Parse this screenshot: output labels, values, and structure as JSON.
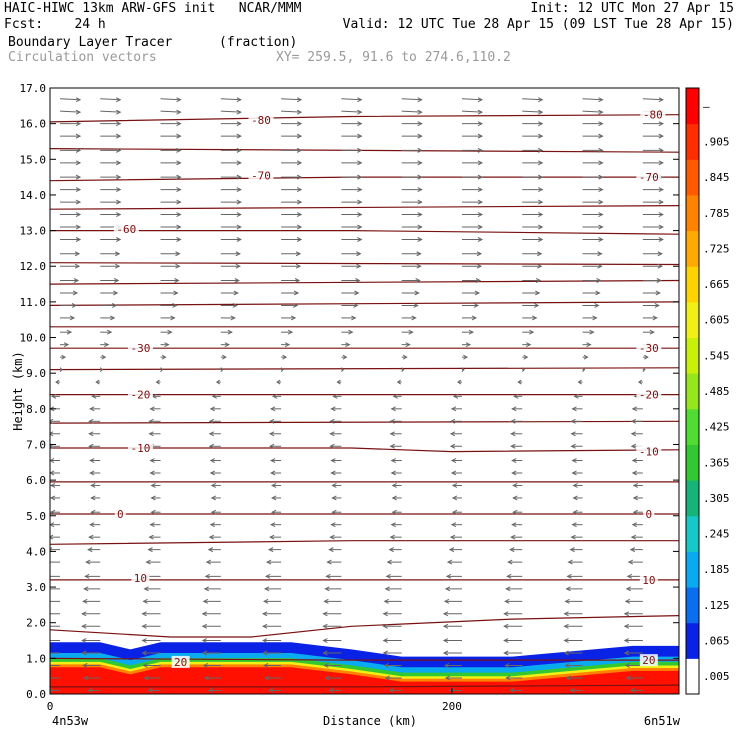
{
  "header": {
    "line1_left": "HAIC-HIWC 13km ARW-GFS init   NCAR/MMM",
    "line1_right": "Init: 12 UTC Mon 27 Apr 15",
    "line2_left": "Fcst:    24 h",
    "line2_right": "Valid: 12 UTC Tue 28 Apr 15 (09 LST Tue 28 Apr 15)",
    "field_name": "Boundary Layer Tracer",
    "field_units": "(fraction)",
    "overlay_name": "Circulation vectors",
    "xy_range": "XY= 259.5, 91.6 to 274.6,110.2"
  },
  "chart_data": {
    "type": "heatmap",
    "xlabel": "Distance (km)",
    "ylabel": "Height (km)",
    "xlim": [
      0,
      313
    ],
    "ylim": [
      0,
      17
    ],
    "x_ticks": [
      {
        "value": 0,
        "label": "0"
      },
      {
        "value": 200,
        "label": "200"
      }
    ],
    "y_ticks": [
      "0.0",
      "1.0",
      "2.0",
      "3.0",
      "4.0",
      "5.0",
      "6.0",
      "7.0",
      "8.0",
      "9.0",
      "10.0",
      "11.0",
      "12.0",
      "13.0",
      "14.0",
      "15.0",
      "16.0",
      "17.0"
    ],
    "left_endpoint_label": "4n53w",
    "right_endpoint_label": "6n51w",
    "colorbar": {
      "labels": [
        ".005",
        ".065",
        ".125",
        ".185",
        ".245",
        ".305",
        ".365",
        ".425",
        ".485",
        ".545",
        ".605",
        ".665",
        ".725",
        ".785",
        ".845",
        ".905",
        "–"
      ],
      "colors": [
        "#ffffff",
        "#0a22e6",
        "#0a6ef0",
        "#0aaaf0",
        "#16c8c8",
        "#16b478",
        "#32c832",
        "#50dc32",
        "#96e61e",
        "#c8f00a",
        "#f0f014",
        "#ffd200",
        "#ffaa00",
        "#ff8200",
        "#ff5a00",
        "#ff2d00",
        "#ff0000"
      ]
    },
    "tracer_layer": {
      "top_height_km": [
        [
          0,
          1.45
        ],
        [
          25,
          1.45
        ],
        [
          40,
          1.25
        ],
        [
          55,
          1.45
        ],
        [
          100,
          1.45
        ],
        [
          120,
          1.45
        ],
        [
          150,
          1.25
        ],
        [
          175,
          1.05
        ],
        [
          230,
          1.05
        ],
        [
          260,
          1.2
        ],
        [
          290,
          1.35
        ],
        [
          313,
          1.35
        ]
      ],
      "bands": [
        {
          "offset_km": 0.3,
          "color": "#0a22e6"
        },
        {
          "offset_km": 0.45,
          "color": "#0aaaf0"
        },
        {
          "offset_km": 0.55,
          "color": "#32c832"
        },
        {
          "offset_km": 0.62,
          "color": "#f0f014"
        },
        {
          "offset_km": 0.7,
          "color": "#ff8200"
        },
        {
          "offset_km": 10,
          "color": "#ff1000"
        }
      ]
    },
    "temperature_contours": [
      {
        "label": "0",
        "points": [
          [
            0,
            5.05
          ],
          [
            150,
            5.05
          ],
          [
            313,
            5.05
          ]
        ],
        "label_at": [
          [
            35,
            5.05
          ],
          [
            298,
            5.05
          ]
        ]
      },
      {
        "label": "-10",
        "points": [
          [
            0,
            6.9
          ],
          [
            150,
            6.9
          ],
          [
            200,
            6.8
          ],
          [
            313,
            6.85
          ]
        ],
        "label_at": [
          [
            45,
            6.9
          ],
          [
            298,
            6.8
          ]
        ]
      },
      {
        "label": "-20",
        "points": [
          [
            0,
            8.4
          ],
          [
            150,
            8.4
          ],
          [
            313,
            8.4
          ]
        ],
        "label_at": [
          [
            45,
            8.4
          ],
          [
            298,
            8.4
          ]
        ]
      },
      {
        "label": "-30",
        "points": [
          [
            0,
            9.7
          ],
          [
            150,
            9.7
          ],
          [
            313,
            9.7
          ]
        ],
        "label_at": [
          [
            45,
            9.7
          ],
          [
            298,
            9.7
          ]
        ]
      },
      {
        "label": "-60",
        "points": [
          [
            0,
            13.0
          ],
          [
            150,
            13.0
          ],
          [
            313,
            12.9
          ]
        ],
        "label_at": [
          [
            38,
            13.05
          ]
        ]
      },
      {
        "label": "-70",
        "points": [
          [
            0,
            14.4
          ],
          [
            150,
            14.5
          ],
          [
            313,
            14.5
          ]
        ],
        "label_at": [
          [
            105,
            14.55
          ],
          [
            298,
            14.5
          ]
        ]
      },
      {
        "label": "-80",
        "points": [
          [
            0,
            16.05
          ],
          [
            150,
            16.2
          ],
          [
            313,
            16.25
          ]
        ],
        "label_at": [
          [
            105,
            16.1
          ],
          [
            300,
            16.25
          ]
        ]
      },
      {
        "label": "10",
        "points": [
          [
            0,
            3.2
          ],
          [
            150,
            3.2
          ],
          [
            313,
            3.2
          ]
        ],
        "label_at": [
          [
            45,
            3.25
          ],
          [
            298,
            3.2
          ]
        ]
      },
      {
        "label": "20",
        "points": [
          [
            0,
            1.0
          ],
          [
            150,
            0.95
          ],
          [
            313,
            0.95
          ]
        ],
        "label_at": [
          [
            65,
            0.9
          ],
          [
            298,
            0.95
          ]
        ]
      }
    ],
    "other_contours": [
      [
        [
          0,
          0.2
        ],
        [
          100,
          0.2
        ],
        [
          150,
          0.2
        ],
        [
          313,
          0.25
        ]
      ],
      [
        [
          0,
          1.8
        ],
        [
          60,
          1.6
        ],
        [
          100,
          1.6
        ],
        [
          150,
          1.9
        ],
        [
          230,
          2.1
        ],
        [
          313,
          2.2
        ]
      ],
      [
        [
          0,
          4.2
        ],
        [
          150,
          4.3
        ],
        [
          313,
          4.3
        ]
      ],
      [
        [
          0,
          5.95
        ],
        [
          313,
          5.95
        ]
      ],
      [
        [
          0,
          7.6
        ],
        [
          313,
          7.65
        ]
      ],
      [
        [
          0,
          9.1
        ],
        [
          313,
          9.15
        ]
      ],
      [
        [
          0,
          10.3
        ],
        [
          313,
          10.3
        ]
      ],
      [
        [
          0,
          10.9
        ],
        [
          313,
          11.0
        ]
      ],
      [
        [
          0,
          11.5
        ],
        [
          313,
          11.6
        ]
      ],
      [
        [
          0,
          12.1
        ],
        [
          313,
          12.05
        ]
      ],
      [
        [
          0,
          13.6
        ],
        [
          313,
          13.7
        ]
      ],
      [
        [
          0,
          15.3
        ],
        [
          313,
          15.2
        ]
      ]
    ],
    "circulation_vectors": {
      "x_columns_km": [
        5,
        25,
        55,
        85,
        115,
        145,
        175,
        205,
        235,
        265,
        295
      ],
      "levels": [
        {
          "z": 16.7,
          "u": 1.0,
          "w": -0.05
        },
        {
          "z": 16.35,
          "u": 1.0,
          "w": -0.05
        },
        {
          "z": 16.0,
          "u": 1.0,
          "w": 0.0
        },
        {
          "z": 15.65,
          "u": 1.0,
          "w": 0.0
        },
        {
          "z": 15.25,
          "u": 1.0,
          "w": 0.0
        },
        {
          "z": 14.9,
          "u": 1.0,
          "w": 0.0
        },
        {
          "z": 14.5,
          "u": 1.0,
          "w": 0.0
        },
        {
          "z": 14.15,
          "u": 1.0,
          "w": 0.0
        },
        {
          "z": 13.8,
          "u": 1.0,
          "w": 0.0
        },
        {
          "z": 13.45,
          "u": 1.0,
          "w": 0.0
        },
        {
          "z": 13.1,
          "u": 1.0,
          "w": 0.0
        },
        {
          "z": 12.75,
          "u": 1.0,
          "w": 0.0
        },
        {
          "z": 12.35,
          "u": 0.95,
          "w": 0.0
        },
        {
          "z": 12.0,
          "u": 0.95,
          "w": 0.0
        },
        {
          "z": 11.6,
          "u": 0.9,
          "w": 0.0
        },
        {
          "z": 11.25,
          "u": 0.85,
          "w": 0.0
        },
        {
          "z": 10.9,
          "u": 0.8,
          "w": 0.0
        },
        {
          "z": 10.55,
          "u": 0.7,
          "w": 0.0
        },
        {
          "z": 10.15,
          "u": 0.55,
          "w": 0.0
        },
        {
          "z": 9.8,
          "u": 0.4,
          "w": 0.0
        },
        {
          "z": 9.45,
          "u": 0.25,
          "w": 0.0
        },
        {
          "z": 9.1,
          "u": 0.1,
          "w": 0.0
        },
        {
          "z": 8.75,
          "u": -0.2,
          "w": 0.0
        },
        {
          "z": 8.35,
          "u": -0.4,
          "w": 0.0
        },
        {
          "z": 8.0,
          "u": -0.5,
          "w": 0.0
        },
        {
          "z": 7.65,
          "u": -0.55,
          "w": 0.0
        },
        {
          "z": 7.3,
          "u": -0.55,
          "w": 0.0
        },
        {
          "z": 6.95,
          "u": -0.55,
          "w": 0.0
        },
        {
          "z": 6.55,
          "u": -0.5,
          "w": 0.0
        },
        {
          "z": 6.2,
          "u": -0.5,
          "w": 0.0
        },
        {
          "z": 5.85,
          "u": -0.45,
          "w": 0.0
        },
        {
          "z": 5.5,
          "u": -0.45,
          "w": 0.0
        },
        {
          "z": 5.1,
          "u": -0.45,
          "w": 0.0
        },
        {
          "z": 4.75,
          "u": -0.5,
          "w": 0.0
        },
        {
          "z": 4.4,
          "u": -0.55,
          "w": 0.0
        },
        {
          "z": 4.05,
          "u": -0.6,
          "w": 0.0
        },
        {
          "z": 3.7,
          "u": -0.7,
          "w": 0.0
        },
        {
          "z": 3.3,
          "u": -0.75,
          "w": 0.0
        },
        {
          "z": 2.95,
          "u": -0.8,
          "w": 0.0
        },
        {
          "z": 2.6,
          "u": -0.85,
          "w": 0.0
        },
        {
          "z": 2.25,
          "u": -0.9,
          "w": 0.0
        },
        {
          "z": 1.9,
          "u": -0.9,
          "w": 0.0
        },
        {
          "z": 1.5,
          "u": -0.9,
          "w": 0.0
        },
        {
          "z": 1.15,
          "u": -0.9,
          "w": 0.0
        },
        {
          "z": 0.8,
          "u": -0.85,
          "w": 0.0
        },
        {
          "z": 0.45,
          "u": -0.8,
          "w": 0.0
        },
        {
          "z": 0.1,
          "u": -0.6,
          "w": 0.0
        }
      ]
    }
  }
}
